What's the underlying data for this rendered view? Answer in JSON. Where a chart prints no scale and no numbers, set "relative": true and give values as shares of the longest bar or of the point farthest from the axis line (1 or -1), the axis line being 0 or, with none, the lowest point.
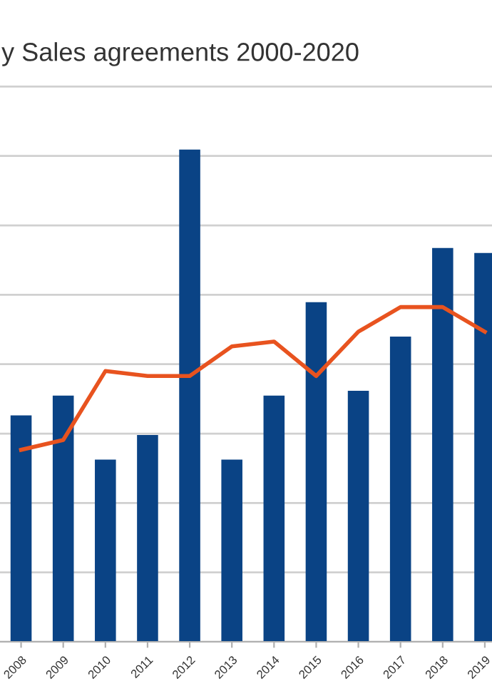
{
  "chart_data": {
    "type": "bar",
    "title": "y Sales agreements 2000-2020",
    "relative": true,
    "grid": "y",
    "categories": [
      "2008",
      "2009",
      "2010",
      "2011",
      "2012",
      "2013",
      "2014",
      "2015",
      "2016",
      "2017",
      "2018",
      "2019"
    ],
    "series": [
      {
        "color": "#0a4385",
        "values": [
          0.46,
          0.5,
          0.37,
          0.42,
          1,
          0.37,
          0.5,
          0.69,
          0.51,
          0.62,
          0.8,
          0.79
        ]
      },
      {
        "type": "line",
        "color": "#e8531f",
        "values": [
          0.39,
          0.41,
          0.55,
          0.54,
          0.54,
          0.6,
          0.61,
          0.54,
          0.63,
          0.68,
          0.68,
          0.63
        ]
      }
    ]
  }
}
